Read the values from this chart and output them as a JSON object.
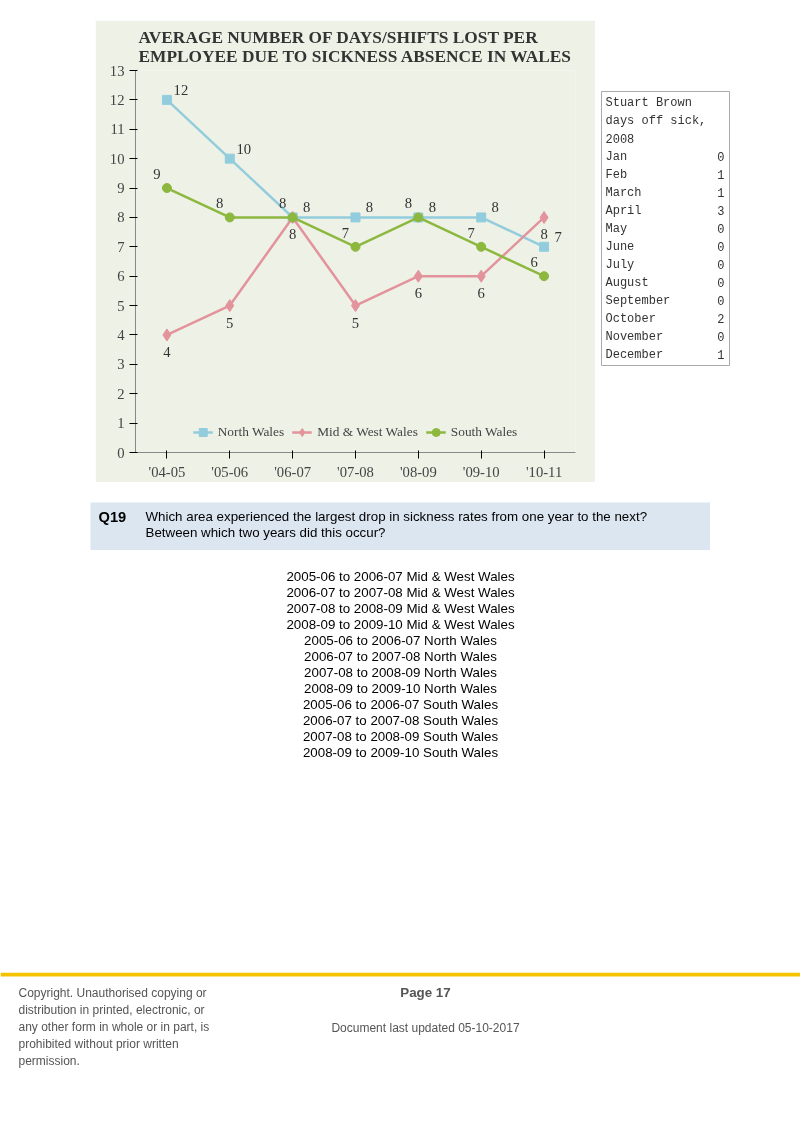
{
  "chart_data": [
    {
      "type": "line",
      "title": "AVERAGE NUMBER OF DAYS/SHIFTS LOST PER\nEMPLOYEE DUE TO SICKNESS ABSENCE IN WALES",
      "categories": [
        "'04-05",
        "'05-06",
        "'06-07",
        "'07-08",
        "'08-09",
        "'09-10",
        "'10-11"
      ],
      "series": [
        {
          "name": "North Wales",
          "color": "#93cddd",
          "marker": "square",
          "values": [
            12,
            10,
            8,
            8,
            8,
            8,
            7
          ]
        },
        {
          "name": "Mid & West Wales",
          "color": "#e3939c",
          "marker": "diamond",
          "values": [
            4,
            5,
            8,
            5,
            6,
            6,
            8
          ]
        },
        {
          "name": "South Wales",
          "color": "#8db83f",
          "marker": "circle",
          "values": [
            9,
            8,
            8,
            7,
            8,
            7,
            6
          ]
        }
      ],
      "ylim": [
        0,
        13
      ],
      "yticks": [
        0,
        1,
        2,
        3,
        4,
        5,
        6,
        7,
        8,
        9,
        10,
        11,
        12,
        13
      ],
      "data_labels": true,
      "grid": false,
      "legend": "bottom"
    },
    {
      "type": "other",
      "title": "Stuart Brown days off sick, 2008",
      "categories": [
        "Jan",
        "Feb",
        "March",
        "April",
        "May",
        "June",
        "July",
        "August",
        "September",
        "October",
        "November",
        "December"
      ],
      "values": [
        0,
        1,
        1,
        3,
        0,
        0,
        0,
        0,
        0,
        2,
        0,
        1
      ],
      "data_labels": true
    },
    {
      "type": "other",
      "title": "Q19",
      "subtitle": "Which area experienced the largest drop in sickness rates from one year to the next? Between which two years did this occur?",
      "annotations": [
        "2005-06 to 2006-07 Mid & West Wales",
        "2006-07 to 2007-08 Mid & West Wales",
        "2007-08 to 2008-09 Mid & West Wales",
        "2008-09 to 2009-10 Mid & West Wales",
        "2005-06 to 2006-07 North Wales",
        "2006-07 to 2007-08 North Wales",
        "2007-08 to 2008-09 North Wales",
        "2008-09 to 2009-10 North Wales",
        "2005-06 to 2006-07 South Wales",
        "2006-07 to 2007-08 South Wales",
        "2007-08 to 2008-09 South Wales",
        "2008-09 to 2009-10 South Wales"
      ]
    },
    {
      "type": "other",
      "annotations": [
        "Copyright. Unauthorised copying or distribution in printed, electronic, or any other form in whole or in part, is prohibited without prior written permission.",
        "Page 17",
        "Document last updated 05-10-2017"
      ]
    }
  ]
}
